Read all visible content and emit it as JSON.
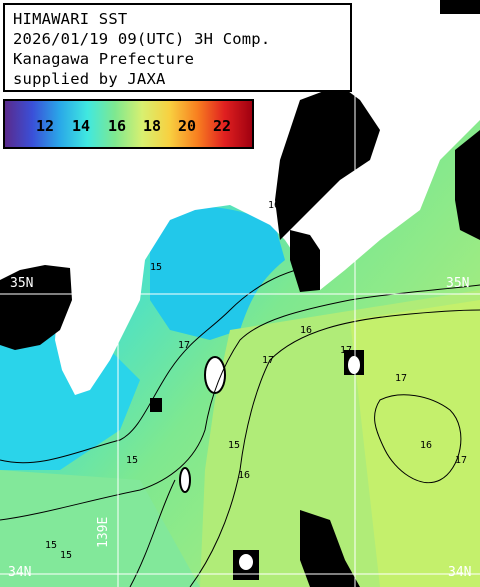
{
  "title": {
    "lines": [
      "HIMAWARI SST",
      "2026/01/19 09(UTC) 3H Comp.",
      "Kanagawa Prefecture",
      "supplied by JAXA"
    ]
  },
  "colorbar": {
    "labels": [
      "12",
      "14",
      "16",
      "18",
      "20",
      "22"
    ],
    "colors": [
      "#5a2a8c",
      "#3a50d8",
      "#2aa8e8",
      "#40e8e0",
      "#7ee890",
      "#d8f070",
      "#f8d040",
      "#f88020",
      "#e02020",
      "#a00010"
    ]
  },
  "grid_labels": {
    "lat_35n_left": "35N",
    "lat_35n_right": "35N",
    "lon_139e": "139E",
    "lat_34n": "34N",
    "lat_34n_right": "34N"
  },
  "contour_labels": [
    "15",
    "16",
    "17",
    "15",
    "15",
    "15",
    "16",
    "17",
    "17",
    "17",
    "17",
    "16",
    "16",
    "15"
  ],
  "colors": {
    "land": "#ffffff",
    "no_data": "#000000",
    "grid": "#ffffff"
  }
}
